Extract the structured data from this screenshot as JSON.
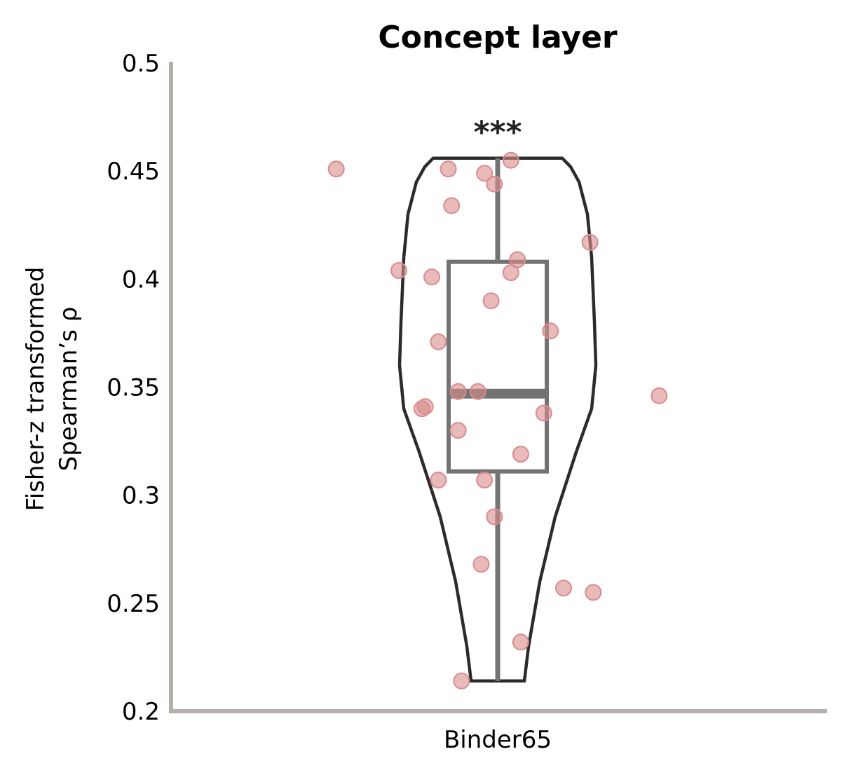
{
  "chart_data": {
    "type": "violin",
    "title": "Concept layer",
    "xlabel": "",
    "ylabel_lines": [
      "Fisher-z transformed",
      "Spearman’s ρ"
    ],
    "categories": [
      "Binder65"
    ],
    "ylim": [
      0.2,
      0.5
    ],
    "yticks": [
      0.2,
      0.25,
      0.3,
      0.35,
      0.4,
      0.45,
      0.5
    ],
    "ytick_labels": [
      "0.2",
      "0.25",
      "0.3",
      "0.35",
      "0.4",
      "0.45",
      "0.5"
    ],
    "significance": "***",
    "box": {
      "whisker_low": 0.214,
      "q1": 0.311,
      "median": 0.347,
      "q3": 0.408,
      "whisker_high": 0.456
    },
    "violin_range": [
      0.214,
      0.456
    ],
    "points": [
      {
        "x": -0.49,
        "y": 0.451
      },
      {
        "x": -0.15,
        "y": 0.451
      },
      {
        "x": -0.04,
        "y": 0.449
      },
      {
        "x": 0.04,
        "y": 0.455
      },
      {
        "x": -0.01,
        "y": 0.444
      },
      {
        "x": -0.14,
        "y": 0.434
      },
      {
        "x": 0.28,
        "y": 0.417
      },
      {
        "x": 0.06,
        "y": 0.409
      },
      {
        "x": -0.3,
        "y": 0.404
      },
      {
        "x": 0.04,
        "y": 0.403
      },
      {
        "x": -0.2,
        "y": 0.401
      },
      {
        "x": -0.02,
        "y": 0.39
      },
      {
        "x": 0.16,
        "y": 0.376
      },
      {
        "x": -0.18,
        "y": 0.371
      },
      {
        "x": -0.12,
        "y": 0.348
      },
      {
        "x": -0.06,
        "y": 0.348
      },
      {
        "x": 0.49,
        "y": 0.346
      },
      {
        "x": -0.23,
        "y": 0.34
      },
      {
        "x": -0.22,
        "y": 0.341
      },
      {
        "x": 0.14,
        "y": 0.338
      },
      {
        "x": -0.12,
        "y": 0.33
      },
      {
        "x": 0.07,
        "y": 0.319
      },
      {
        "x": -0.18,
        "y": 0.307
      },
      {
        "x": -0.04,
        "y": 0.307
      },
      {
        "x": -0.01,
        "y": 0.29
      },
      {
        "x": -0.05,
        "y": 0.268
      },
      {
        "x": 0.2,
        "y": 0.257
      },
      {
        "x": 0.29,
        "y": 0.255
      },
      {
        "x": 0.07,
        "y": 0.232
      },
      {
        "x": -0.11,
        "y": 0.214
      }
    ],
    "colors": {
      "points": "#d98c8c",
      "violin_edge": "#2b2b2b",
      "box": "#737373",
      "axes": "#b3afa9"
    }
  }
}
